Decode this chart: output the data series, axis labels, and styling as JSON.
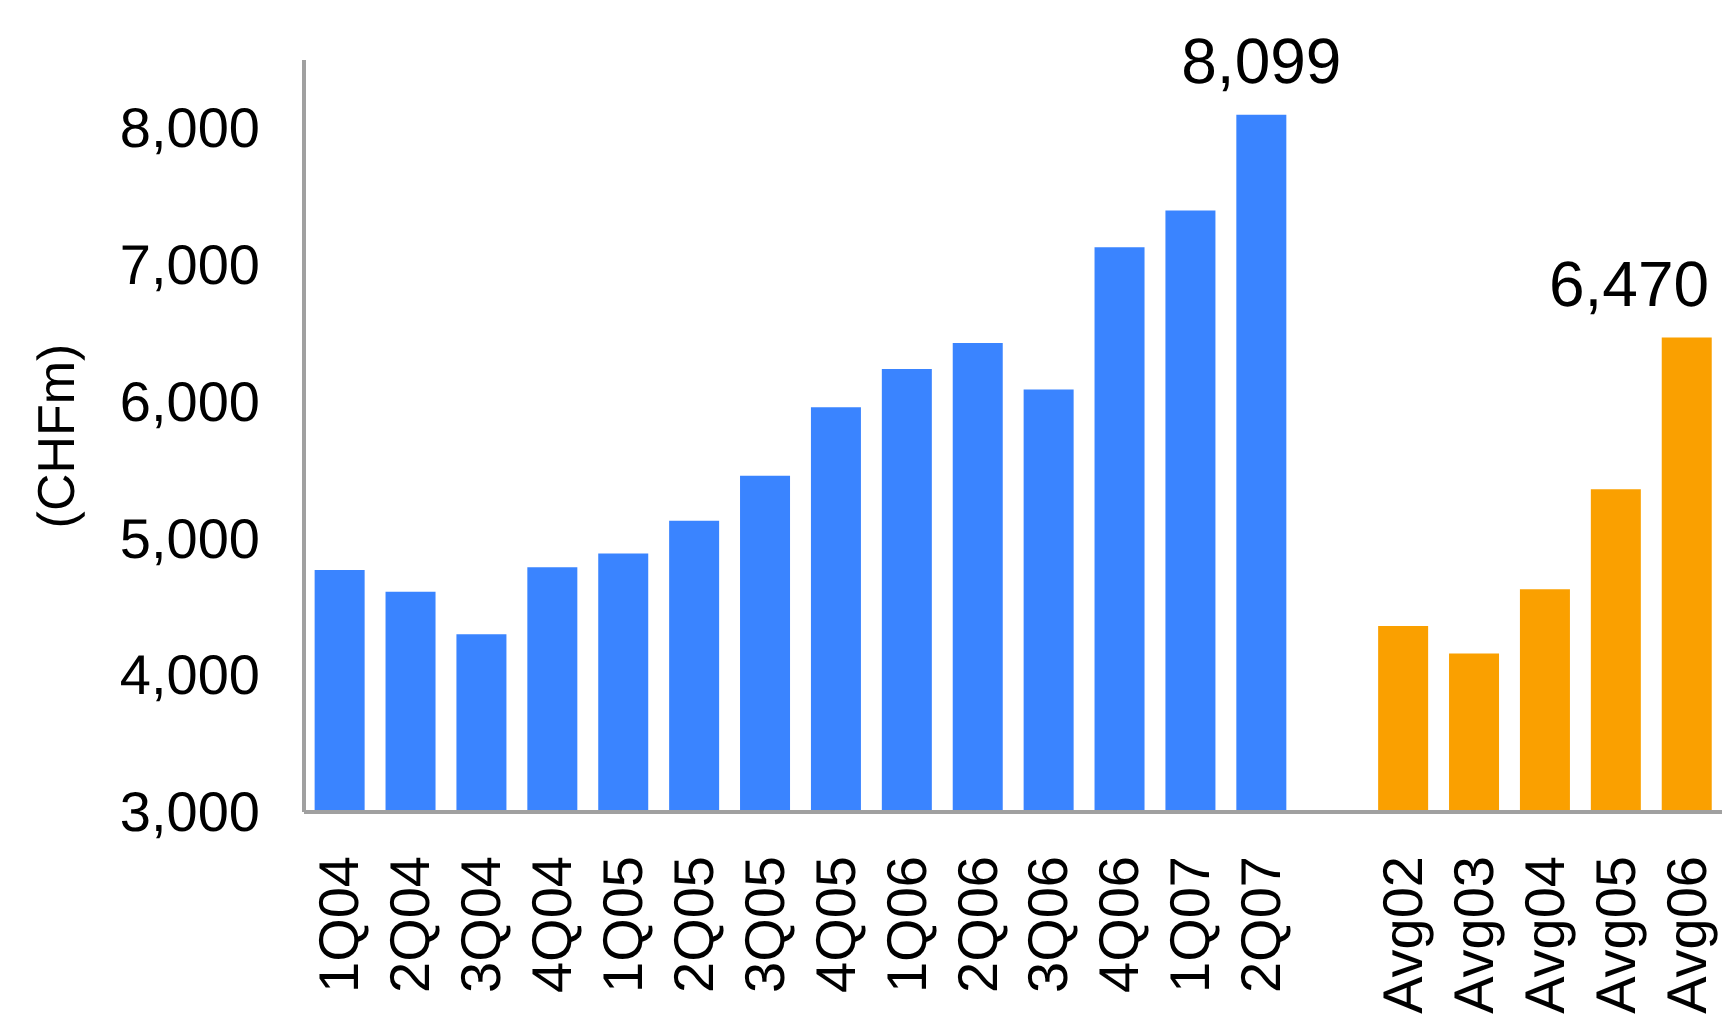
{
  "chart_data": {
    "type": "bar",
    "ylabel": "(CHFm)",
    "categories": [
      "1Q04",
      "2Q04",
      "3Q04",
      "4Q04",
      "1Q05",
      "2Q05",
      "3Q05",
      "4Q05",
      "1Q06",
      "2Q06",
      "3Q06",
      "4Q06",
      "1Q07",
      "2Q07",
      null,
      "Avg02",
      "Avg03",
      "Avg04",
      "Avg05",
      "Avg06"
    ],
    "values": [
      4770,
      4610,
      4300,
      4790,
      4890,
      5130,
      5460,
      5960,
      6240,
      6430,
      6090,
      7130,
      7400,
      8099,
      null,
      4360,
      4160,
      4630,
      5360,
      6470
    ],
    "colors": [
      "#3a84ff",
      "#3a84ff",
      "#3a84ff",
      "#3a84ff",
      "#3a84ff",
      "#3a84ff",
      "#3a84ff",
      "#3a84ff",
      "#3a84ff",
      "#3a84ff",
      "#3a84ff",
      "#3a84ff",
      "#3a84ff",
      "#3a84ff",
      "#3a84ff",
      "#faa000",
      "#faa000",
      "#faa000",
      "#faa000",
      "#faa000"
    ],
    "value_labels": [
      null,
      null,
      null,
      null,
      null,
      null,
      null,
      null,
      null,
      null,
      null,
      null,
      null,
      "8,099",
      null,
      null,
      null,
      null,
      null,
      "6,470"
    ],
    "ylim": [
      3000,
      8500
    ],
    "yticks": [
      {
        "value": 3000,
        "label": "3,000"
      },
      {
        "value": 4000,
        "label": "4,000"
      },
      {
        "value": 5000,
        "label": "5,000"
      },
      {
        "value": 6000,
        "label": "6,000"
      },
      {
        "value": 7000,
        "label": "7,000"
      },
      {
        "value": 8000,
        "label": "8,000"
      }
    ]
  }
}
